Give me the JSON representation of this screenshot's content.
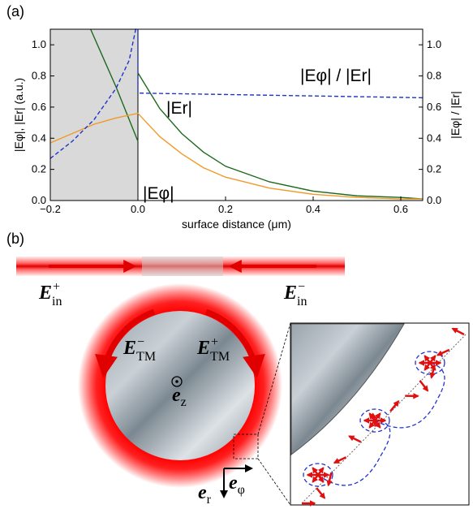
{
  "chart_data": {
    "type": "line",
    "panel_label": "(a)",
    "x_label": "surface distance (μm)",
    "y_label": "|Eφ|, |Er| (a.u.)",
    "y2_label": "|Eφ| / |Er|",
    "xlim": [
      -0.2,
      0.65
    ],
    "ylim": [
      0,
      1.1
    ],
    "y2lim": [
      0,
      1.1
    ],
    "xticks": [
      {
        "value": -0.2,
        "label": "−0.2"
      },
      {
        "value": 0,
        "label": "0.0"
      },
      {
        "value": 0.2,
        "label": "0.2"
      },
      {
        "value": 0.4,
        "label": "0.4"
      },
      {
        "value": 0.6,
        "label": "0.6"
      }
    ],
    "yticks": [
      {
        "value": 0,
        "label": "0.0"
      },
      {
        "value": 0.2,
        "label": "0.2"
      },
      {
        "value": 0.4,
        "label": "0.4"
      },
      {
        "value": 0.6,
        "label": "0.6"
      },
      {
        "value": 0.8,
        "label": "0.8"
      },
      {
        "value": 1,
        "label": "1.0"
      }
    ],
    "y2ticks": [
      {
        "value": 0,
        "label": "0.0"
      },
      {
        "value": 0.2,
        "label": "0.2"
      },
      {
        "value": 0.4,
        "label": "0.4"
      },
      {
        "value": 0.6,
        "label": "0.6"
      },
      {
        "value": 0.8,
        "label": "0.8"
      },
      {
        "value": 1,
        "label": "1.0"
      }
    ],
    "shaded_region": [
      -0.2,
      0
    ],
    "shade_color": "#d9d9d9",
    "series": [
      {
        "name": "|Er|",
        "color": "#1d6a1d",
        "dash": false,
        "x": [
          -0.108,
          -0.05,
          0,
          0,
          0,
          0.05,
          0.1,
          0.15,
          0.2,
          0.3,
          0.4,
          0.5,
          0.6,
          0.65
        ],
        "values": [
          1.1,
          0.73,
          0.38,
          null,
          0.82,
          0.59,
          0.43,
          0.31,
          0.22,
          0.12,
          0.06,
          0.03,
          0.02,
          0.01
        ]
      },
      {
        "name": "|Eφ|",
        "color": "#f09a2a",
        "dash": false,
        "x": [
          -0.2,
          -0.15,
          -0.1,
          -0.05,
          0,
          0.05,
          0.1,
          0.15,
          0.2,
          0.3,
          0.4,
          0.5,
          0.6,
          0.65
        ],
        "values": [
          0.37,
          0.43,
          0.49,
          0.53,
          0.56,
          0.41,
          0.3,
          0.21,
          0.15,
          0.08,
          0.04,
          0.02,
          0.01,
          0.01
        ]
      },
      {
        "name": "|Eφ| / |Er|",
        "color": "#2233cc",
        "dash": true,
        "axis": "y2",
        "x": [
          -0.2,
          -0.15,
          -0.1,
          -0.05,
          -0.02,
          -0.005,
          0,
          0,
          0.65
        ],
        "values": [
          0.27,
          0.38,
          0.52,
          0.72,
          0.9,
          1.1,
          1.1,
          0.69,
          0.66
        ]
      }
    ]
  },
  "diagram": {
    "panel_label": "(b)",
    "e_in_plus": {
      "base": "E",
      "sup": "+",
      "sub": "in"
    },
    "e_in_minus": {
      "base": "E",
      "sup": "−",
      "sub": "in"
    },
    "e_tm_minus": {
      "base": "E",
      "sup": "−",
      "sub": "TM"
    },
    "e_tm_plus": {
      "base": "E",
      "sup": "+",
      "sub": "TM"
    },
    "e_z": {
      "base": "e",
      "sub": "z"
    },
    "e_r": {
      "base": "e",
      "sub": "r"
    },
    "e_phi": {
      "base": "e",
      "sub": "φ"
    }
  }
}
